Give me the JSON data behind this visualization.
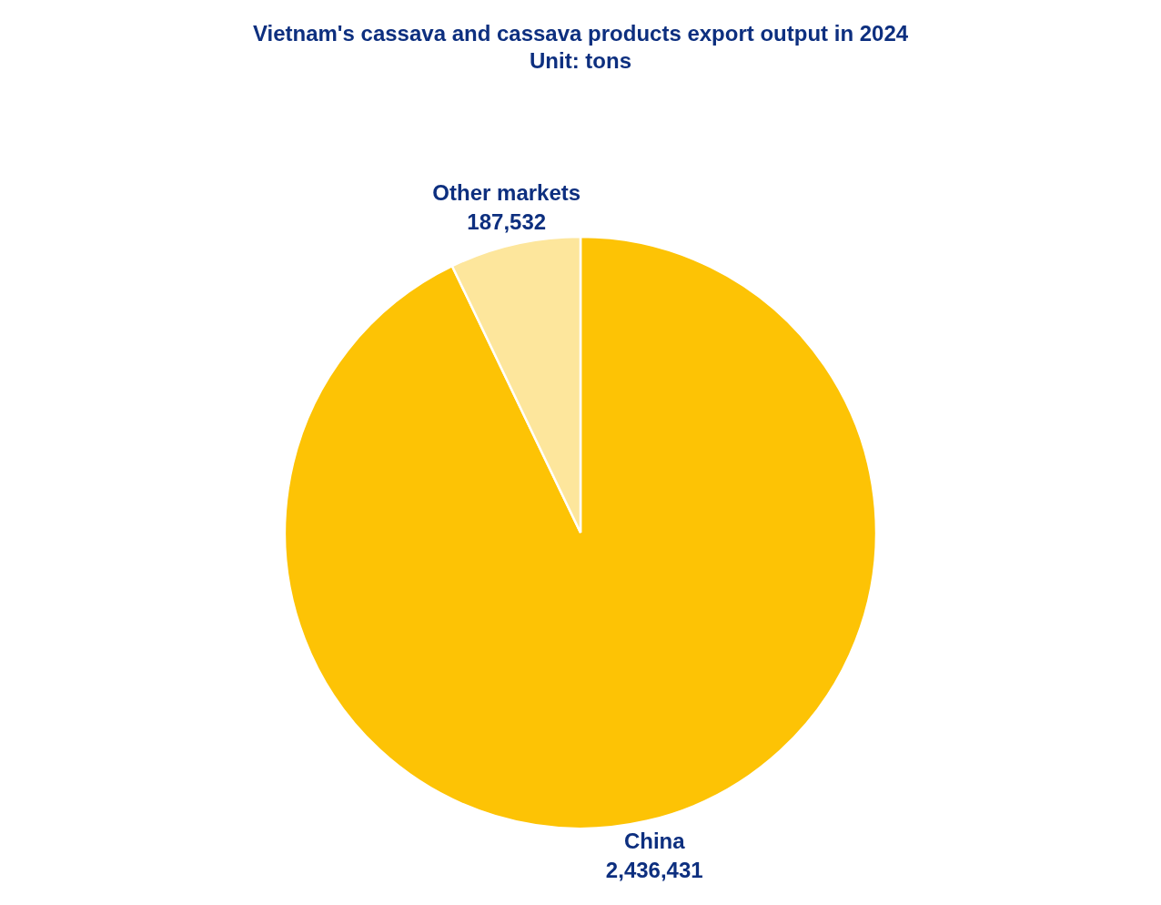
{
  "chart_data": {
    "type": "pie",
    "title": "Vietnam's cassava and cassava products export output in 2024",
    "subtitle": "Unit: tons",
    "categories": [
      "China",
      "Other markets"
    ],
    "values": [
      2436431,
      187532
    ],
    "value_labels": [
      "2,436,431",
      "187,532"
    ],
    "colors": [
      "#fdc305",
      "#fde69c"
    ],
    "legend": false
  }
}
